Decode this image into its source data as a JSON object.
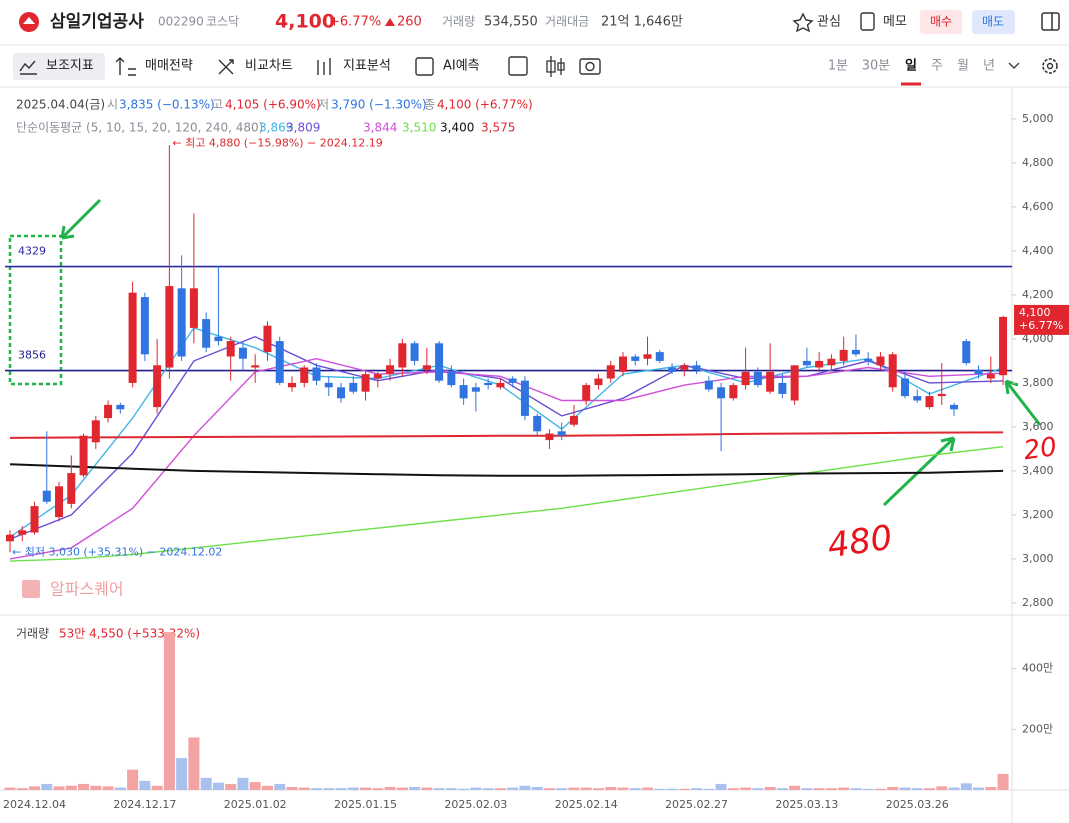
{
  "header": {
    "name": "삼일기업공사",
    "code": "002290",
    "market": "코스닥",
    "price": "4,100",
    "change_rate": "+6.77%",
    "change": "260",
    "volume_label": "거래량",
    "volume": "534,550",
    "amount_label": "거래대금",
    "amount": "21억 1,646만",
    "watch": "관심",
    "memo": "메모",
    "buy": "매수",
    "sell": "매도"
  },
  "toolbar": {
    "tools": [
      "보조지표",
      "매매전략",
      "비교차트",
      "지표분석",
      "AI예측"
    ],
    "periods": [
      "1분",
      "30분",
      "일",
      "주",
      "월",
      "년"
    ],
    "selected_period": "일"
  },
  "chart_data": {
    "type": "candlestick",
    "info": {
      "date": "2025.04.04(금)",
      "open_label": "시",
      "open": "3,835 (−0.13%)",
      "high_label": "고",
      "high": "4,105 (+6.90%)",
      "low_label": "저",
      "low": "3,790 (−1.30%)",
      "close_label": "종",
      "close": "4,100 (+6.77%)"
    },
    "ma_title": "단순이동평균 (5, 10, 15, 20, 120, 240, 480)",
    "up_color": "#e0262f",
    "down_color": "#2f74e0",
    "vol_up_color": "#f4a3a5",
    "vol_down_color": "#a8c1ee",
    "categories": [
      null,
      null,
      "2024.12.04",
      null,
      null,
      null,
      null,
      null,
      null,
      null,
      null,
      "2024.12.17",
      null,
      null,
      null,
      null,
      null,
      null,
      null,
      null,
      "2025.01.02",
      null,
      null,
      null,
      null,
      null,
      null,
      null,
      null,
      "2025.01.15",
      null,
      null,
      null,
      null,
      null,
      null,
      null,
      null,
      "2025.02.03",
      null,
      null,
      null,
      null,
      null,
      null,
      null,
      null,
      "2025.02.14",
      null,
      null,
      null,
      null,
      null,
      null,
      null,
      null,
      "2025.02.27",
      null,
      null,
      null,
      null,
      null,
      null,
      null,
      null,
      "2025.03.13",
      null,
      null,
      null,
      null,
      null,
      null,
      null,
      null,
      "2025.03.26",
      null,
      null,
      null,
      null,
      null,
      null,
      null
    ],
    "open": [
      3080,
      3110,
      3120,
      3310,
      3190,
      3250,
      3380,
      3530,
      3640,
      3700,
      3800,
      4190,
      3690,
      3870,
      4230,
      4050,
      4090,
      4010,
      3920,
      3960,
      3870,
      3940,
      3990,
      3780,
      3800,
      3870,
      3800,
      3780,
      3800,
      3760,
      3820,
      3840,
      3870,
      3980,
      3860,
      3980,
      3850,
      3790,
      3780,
      3800,
      3780,
      3820,
      3810,
      3650,
      3540,
      3580,
      3610,
      3720,
      3790,
      3820,
      3850,
      3920,
      3910,
      3940,
      3870,
      3860,
      3880,
      3810,
      3780,
      3730,
      3790,
      3850,
      3760,
      3800,
      3720,
      3900,
      3870,
      3880,
      3900,
      3950,
      3910,
      3880,
      3780,
      3820,
      3740,
      3690,
      3740,
      3700,
      3990,
      3860,
      3820,
      3835
    ],
    "high": [
      3130,
      3150,
      3260,
      3580,
      3350,
      3470,
      3570,
      3650,
      3720,
      3710,
      4260,
      4210,
      4000,
      4880,
      4380,
      4570,
      4120,
      4330,
      4010,
      3990,
      3930,
      4080,
      4010,
      3830,
      3880,
      3890,
      3830,
      3800,
      3830,
      3860,
      3850,
      3910,
      4000,
      3990,
      3960,
      3990,
      3880,
      3820,
      3800,
      3820,
      3820,
      3830,
      3830,
      3660,
      3590,
      3620,
      3700,
      3800,
      3840,
      3900,
      3940,
      3930,
      4010,
      3950,
      3890,
      3890,
      3900,
      3830,
      3800,
      3800,
      3960,
      3870,
      3980,
      3840,
      3880,
      3960,
      3940,
      3930,
      4010,
      4020,
      3940,
      3940,
      3940,
      3850,
      3770,
      3760,
      3890,
      3710,
      4000,
      3880,
      3920,
      4105
    ],
    "low": [
      3030,
      3080,
      3110,
      3250,
      3170,
      3230,
      3370,
      3500,
      3620,
      3660,
      3780,
      3900,
      3660,
      3820,
      3900,
      3980,
      3940,
      3970,
      3810,
      3860,
      3800,
      3900,
      3790,
      3760,
      3780,
      3790,
      3740,
      3710,
      3750,
      3720,
      3780,
      3810,
      3830,
      3880,
      3840,
      3800,
      3780,
      3700,
      3670,
      3770,
      3770,
      3780,
      3630,
      3560,
      3500,
      3540,
      3600,
      3700,
      3770,
      3800,
      3830,
      3880,
      3880,
      3890,
      3840,
      3830,
      3840,
      3760,
      3490,
      3720,
      3770,
      3780,
      3750,
      3730,
      3700,
      3870,
      3850,
      3860,
      3880,
      3920,
      3880,
      3860,
      3760,
      3730,
      3710,
      3680,
      3700,
      3650,
      3880,
      3820,
      3800,
      3790
    ],
    "close": [
      3110,
      3130,
      3240,
      3260,
      3330,
      3390,
      3560,
      3630,
      3700,
      3680,
      4210,
      3930,
      3880,
      4240,
      3920,
      4230,
      3960,
      3990,
      3990,
      3910,
      3880,
      4060,
      3800,
      3800,
      3870,
      3810,
      3780,
      3730,
      3760,
      3840,
      3840,
      3880,
      3980,
      3900,
      3880,
      3810,
      3790,
      3730,
      3760,
      3790,
      3800,
      3800,
      3650,
      3580,
      3570,
      3560,
      3650,
      3790,
      3820,
      3880,
      3920,
      3900,
      3930,
      3900,
      3850,
      3880,
      3860,
      3770,
      3730,
      3790,
      3850,
      3790,
      3850,
      3750,
      3880,
      3880,
      3900,
      3910,
      3950,
      3930,
      3900,
      3920,
      3930,
      3740,
      3720,
      3740,
      3750,
      3680,
      3890,
      3840,
      3840,
      4100
    ],
    "volume": [
      8,
      6,
      12,
      20,
      12,
      14,
      20,
      14,
      12,
      8,
      67,
      30,
      14,
      520,
      105,
      173,
      40,
      24,
      20,
      40,
      26,
      14,
      20,
      10,
      8,
      6,
      6,
      6,
      8,
      8,
      6,
      10,
      8,
      10,
      8,
      6,
      6,
      4,
      8,
      6,
      6,
      8,
      14,
      10,
      6,
      6,
      8,
      8,
      6,
      10,
      8,
      6,
      8,
      4,
      4,
      4,
      6,
      4,
      20,
      6,
      8,
      6,
      10,
      6,
      14,
      6,
      6,
      6,
      8,
      6,
      4,
      4,
      10,
      8,
      6,
      6,
      12,
      8,
      22,
      8,
      10,
      53
    ],
    "ma_x": [
      0,
      5,
      10,
      15,
      20,
      25,
      30,
      35,
      40,
      45,
      50,
      55,
      60,
      65,
      70,
      75,
      81
    ],
    "ma_series": [
      {
        "color": "#3fb6e6",
        "label": "3,869",
        "values": [
          3100,
          3290,
          3640,
          4050,
          3960,
          3830,
          3820,
          3880,
          3790,
          3590,
          3840,
          3880,
          3800,
          3870,
          3910,
          3750,
          3869
        ]
      },
      {
        "color": "#6a4fd8",
        "label": "3,809",
        "values": [
          3090,
          3200,
          3480,
          3900,
          4010,
          3880,
          3810,
          3860,
          3820,
          3650,
          3730,
          3880,
          3820,
          3830,
          3900,
          3800,
          3809
        ]
      },
      {
        "color": "#cf4fd8",
        "label": "3,844",
        "values": [
          3000,
          3050,
          3230,
          3560,
          3850,
          3910,
          3840,
          3850,
          3830,
          3720,
          3720,
          3790,
          3830,
          3830,
          3870,
          3830,
          3844
        ]
      },
      {
        "color": "#6ee04a",
        "label": "3,510",
        "values": [
          2990,
          3000,
          3020,
          3050,
          3080,
          3110,
          3140,
          3170,
          3200,
          3230,
          3270,
          3310,
          3350,
          3390,
          3430,
          3470,
          3510
        ]
      },
      {
        "color": "#111111",
        "label": "3,400",
        "values": [
          3430,
          3420,
          3410,
          3400,
          3395,
          3390,
          3385,
          3380,
          3378,
          3378,
          3380,
          3382,
          3385,
          3388,
          3390,
          3392,
          3400
        ]
      },
      {
        "color": "#e0262f",
        "label": "3,575",
        "values": [
          3550,
          3552,
          3553,
          3554,
          3555,
          3556,
          3557,
          3558,
          3560,
          3560,
          3562,
          3565,
          3568,
          3570,
          3572,
          3574,
          3575
        ]
      }
    ],
    "hlines": [
      {
        "value": 4329,
        "color": "#2b2ba0"
      },
      {
        "value": 3856,
        "color": "#1e1e8c"
      }
    ],
    "high_note": "← 최고 4,880 (−15.98%) − 2024.12.19",
    "low_note": "← 최저 3,030 (+35.31%) − 2024.12.02",
    "handwritten": [
      "480",
      "20"
    ],
    "watermark": "알파스퀘어",
    "price_tag": {
      "value": 4100,
      "label": "4,100",
      "change": "+6.77%"
    },
    "ylim": [
      2745,
      5145
    ],
    "yticks": [
      {
        "value": 2800,
        "label": "2,800"
      },
      {
        "value": 3000,
        "label": "3,000"
      },
      {
        "value": 3200,
        "label": "3,200"
      },
      {
        "value": 3400,
        "label": "3,400"
      },
      {
        "value": 3600,
        "label": "3,600"
      },
      {
        "value": 3800,
        "label": "3,800"
      },
      {
        "value": 4000,
        "label": "4,000"
      },
      {
        "value": 4200,
        "label": "4,200"
      },
      {
        "value": 4400,
        "label": "4,400"
      },
      {
        "value": 4600,
        "label": "4,600"
      },
      {
        "value": 4800,
        "label": "4,800"
      },
      {
        "value": 5000,
        "label": "5,000"
      }
    ],
    "volume_title": "거래량",
    "volume_info": "53만 4,550 (+533.32%)",
    "vol_ylim": [
      0,
      560
    ],
    "vol_yticks": [
      {
        "value": 200,
        "label": "200만"
      },
      {
        "value": 400,
        "label": "400만"
      }
    ]
  }
}
